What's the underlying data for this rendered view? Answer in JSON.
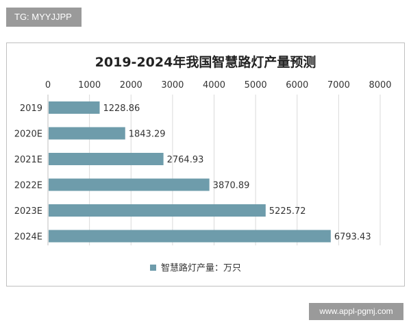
{
  "header_tag": "TG: MYYJJPP",
  "watermark": "www.appl-pgmj.com",
  "colors": {
    "bar": "#6e9cab",
    "grid": "#d9d9d9",
    "text": "#333333"
  },
  "chart_data": {
    "type": "bar",
    "orientation": "horizontal",
    "title": "2019-2024年我国智慧路灯产量预测",
    "categories": [
      "2019",
      "2020E",
      "2021E",
      "2022E",
      "2023E",
      "2024E"
    ],
    "series": [
      {
        "name": "智慧路灯产量：万只",
        "values": [
          1228.86,
          1843.29,
          2764.93,
          3870.89,
          5225.72,
          6793.43
        ]
      }
    ],
    "xlim": [
      0,
      8000
    ],
    "xticks": [
      "0",
      "1000",
      "2000",
      "3000",
      "4000",
      "5000",
      "6000",
      "7000",
      "8000"
    ],
    "x_axis_position": "top",
    "grid": true,
    "legend": "bottom-center",
    "data_labels": [
      "1228.86",
      "1843.29",
      "2764.93",
      "3870.89",
      "5225.72",
      "6793.43"
    ]
  }
}
